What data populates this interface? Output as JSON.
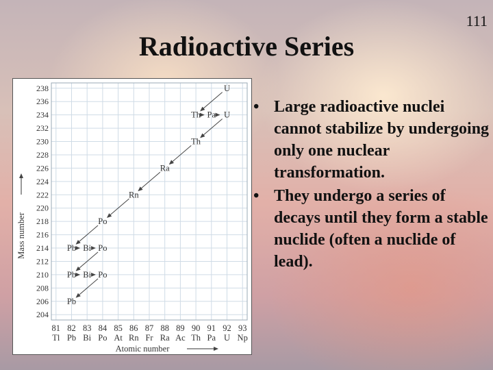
{
  "slide": {
    "title": "Radioactive Series",
    "page_number": "111",
    "bullets": [
      "Large radioactive nuclei cannot stabilize by undergoing only one nuclear transformation.",
      "They undergo a series of decays until they form a stable nuclide (often a nuclide of lead)."
    ]
  },
  "chart_data": {
    "type": "scatter",
    "xlabel": "Atomic number",
    "ylabel": "Mass number",
    "x_ticks": [
      81,
      82,
      83,
      84,
      85,
      86,
      87,
      88,
      89,
      90,
      91,
      92,
      93
    ],
    "x_symbols": [
      "Tl",
      "Pb",
      "Bi",
      "Po",
      "At",
      "Rn",
      "Fr",
      "Ra",
      "Ac",
      "Th",
      "Pa",
      "U",
      "Np"
    ],
    "y_ticks": [
      204,
      206,
      208,
      210,
      212,
      214,
      216,
      218,
      220,
      222,
      224,
      226,
      228,
      230,
      232,
      234,
      236,
      238
    ],
    "xlim": [
      80.7,
      93.3
    ],
    "ylim": [
      203.2,
      238.8
    ],
    "nuclides": [
      {
        "z": 92,
        "a": 238,
        "label": "U"
      },
      {
        "z": 90,
        "a": 234,
        "label": "Th"
      },
      {
        "z": 91,
        "a": 234,
        "label": "Pa"
      },
      {
        "z": 92,
        "a": 234,
        "label": "U"
      },
      {
        "z": 90,
        "a": 230,
        "label": "Th"
      },
      {
        "z": 88,
        "a": 226,
        "label": "Ra"
      },
      {
        "z": 86,
        "a": 222,
        "label": "Rn"
      },
      {
        "z": 84,
        "a": 218,
        "label": "Po"
      },
      {
        "z": 82,
        "a": 214,
        "label": "Pb"
      },
      {
        "z": 83,
        "a": 214,
        "label": "Bi"
      },
      {
        "z": 84,
        "a": 214,
        "label": "Po"
      },
      {
        "z": 82,
        "a": 210,
        "label": "Pb"
      },
      {
        "z": 83,
        "a": 210,
        "label": "Bi"
      },
      {
        "z": 84,
        "a": 210,
        "label": "Po"
      },
      {
        "z": 82,
        "a": 206,
        "label": "Pb"
      }
    ],
    "decays": [
      {
        "from": [
          92,
          238
        ],
        "to": [
          90,
          234
        ],
        "type": "alpha"
      },
      {
        "from": [
          90,
          234
        ],
        "to": [
          91,
          234
        ],
        "type": "beta"
      },
      {
        "from": [
          91,
          234
        ],
        "to": [
          92,
          234
        ],
        "type": "beta"
      },
      {
        "from": [
          92,
          234
        ],
        "to": [
          90,
          230
        ],
        "type": "alpha"
      },
      {
        "from": [
          90,
          230
        ],
        "to": [
          88,
          226
        ],
        "type": "alpha"
      },
      {
        "from": [
          88,
          226
        ],
        "to": [
          86,
          222
        ],
        "type": "alpha"
      },
      {
        "from": [
          86,
          222
        ],
        "to": [
          84,
          218
        ],
        "type": "alpha"
      },
      {
        "from": [
          84,
          218
        ],
        "to": [
          82,
          214
        ],
        "type": "alpha"
      },
      {
        "from": [
          82,
          214
        ],
        "to": [
          83,
          214
        ],
        "type": "beta"
      },
      {
        "from": [
          83,
          214
        ],
        "to": [
          84,
          214
        ],
        "type": "beta"
      },
      {
        "from": [
          84,
          214
        ],
        "to": [
          82,
          210
        ],
        "type": "alpha"
      },
      {
        "from": [
          82,
          210
        ],
        "to": [
          83,
          210
        ],
        "type": "beta"
      },
      {
        "from": [
          83,
          210
        ],
        "to": [
          84,
          210
        ],
        "type": "beta"
      },
      {
        "from": [
          84,
          210
        ],
        "to": [
          82,
          206
        ],
        "type": "alpha"
      }
    ]
  }
}
